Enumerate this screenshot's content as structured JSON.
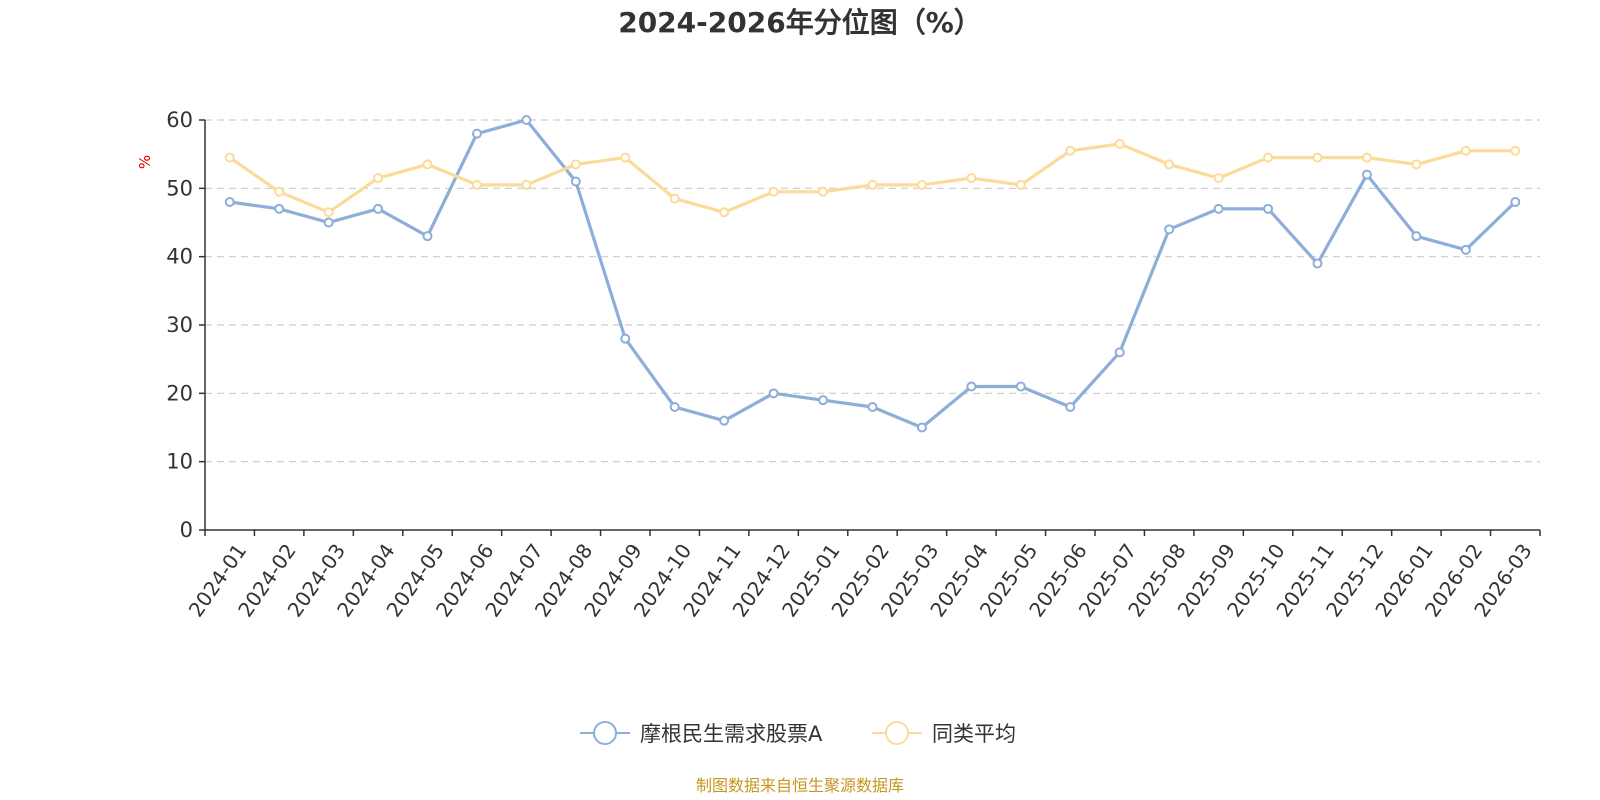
{
  "chart_data": {
    "type": "line",
    "title": "2024-2026年分位图（%）",
    "ylabel": "%",
    "xlabel": "",
    "ylim": [
      0,
      60
    ],
    "yticks": [
      0,
      10,
      20,
      30,
      40,
      50,
      60
    ],
    "grid": true,
    "legend_position": "bottom-center",
    "categories": [
      "2024-01",
      "2024-02",
      "2024-03",
      "2024-04",
      "2024-05",
      "2024-06",
      "2024-07",
      "2024-08",
      "2024-09",
      "2024-10",
      "2024-11",
      "2024-12",
      "2025-01",
      "2025-02",
      "2025-03",
      "2025-04",
      "2025-05",
      "2025-06",
      "2025-07",
      "2025-08",
      "2025-09",
      "2025-10",
      "2025-11",
      "2025-12",
      "2026-01",
      "2026-02",
      "2026-03"
    ],
    "series": [
      {
        "name": "摩根民生需求股票A",
        "color": "#8eaed9",
        "values": [
          48,
          47,
          45,
          47,
          43,
          58,
          60,
          51,
          28,
          18,
          16,
          20,
          19,
          18,
          15,
          21,
          21,
          18,
          26,
          44,
          47,
          47,
          39,
          52,
          43,
          41,
          48
        ]
      },
      {
        "name": "同类平均",
        "color": "#fcdb9a",
        "values": [
          54.5,
          49.5,
          46.5,
          51.5,
          53.5,
          50.5,
          50.5,
          53.5,
          54.5,
          48.5,
          46.5,
          49.5,
          49.5,
          50.5,
          50.5,
          51.5,
          50.5,
          55.5,
          56.5,
          53.5,
          51.5,
          54.5,
          54.5,
          54.5,
          53.5,
          55.5,
          55.5
        ]
      }
    ]
  },
  "source_note": "制图数据来自恒生聚源数据库"
}
